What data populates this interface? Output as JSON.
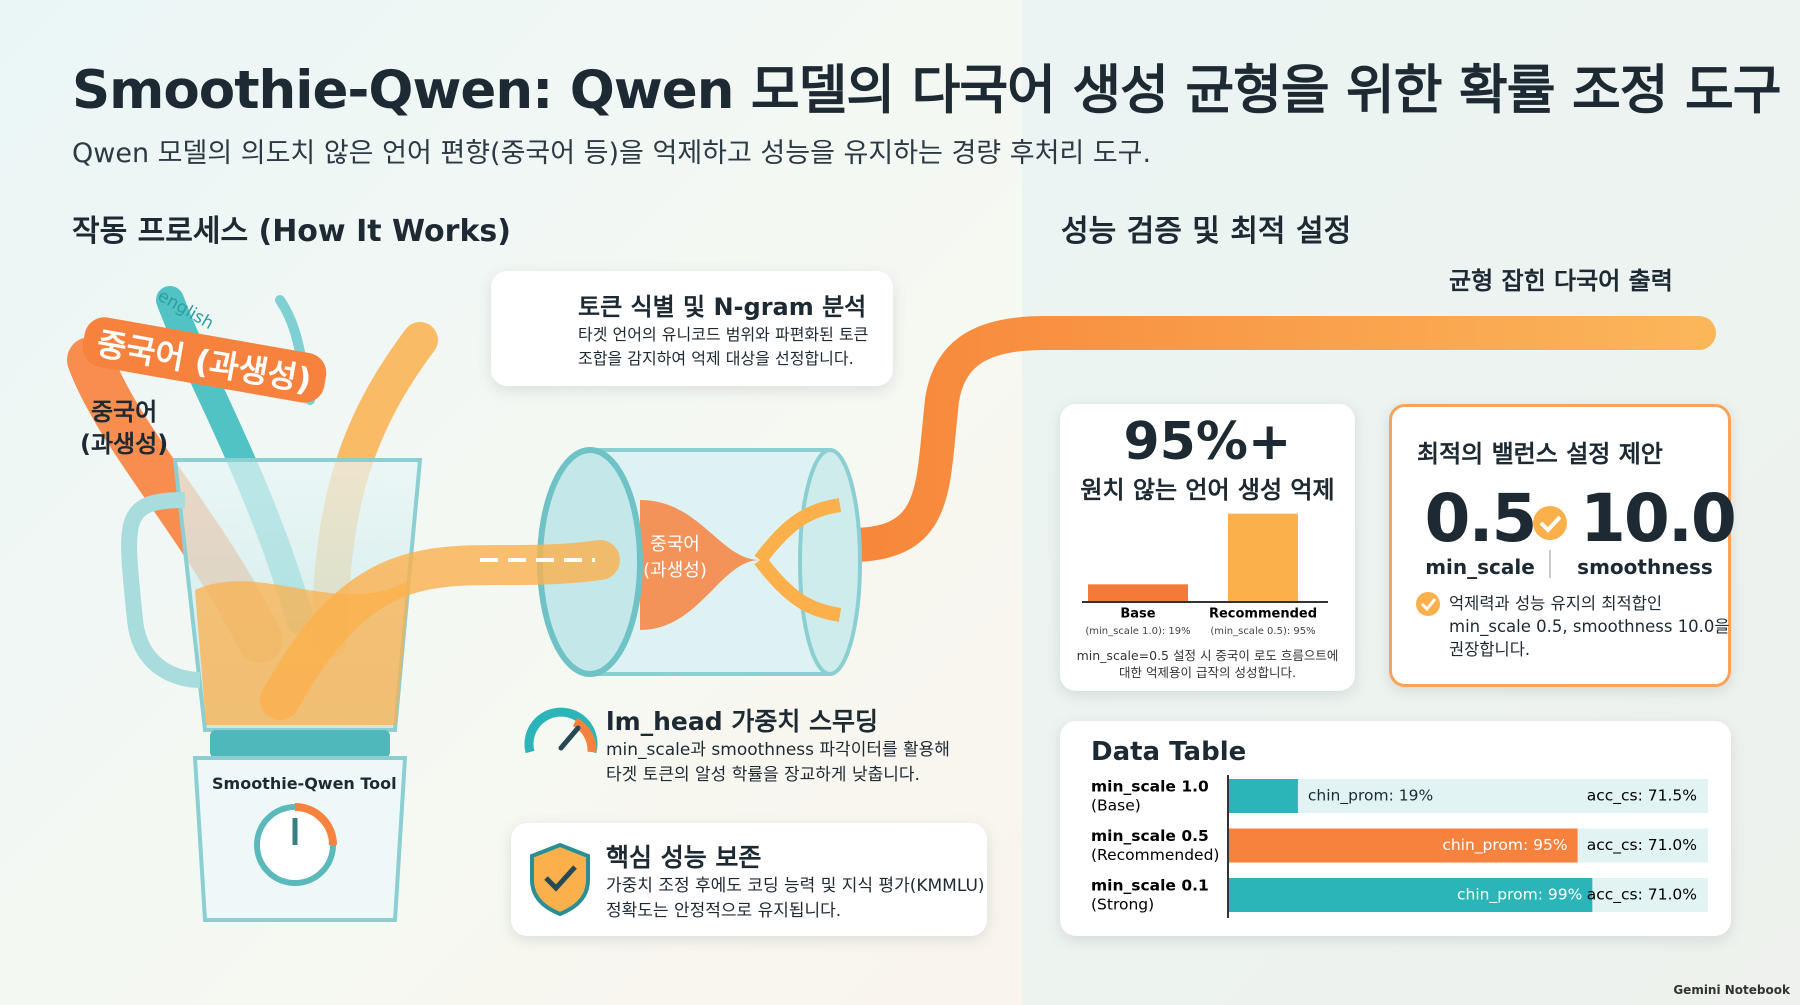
{
  "header": {
    "title": "Smoothie-Qwen: Qwen 모델의 다국어 생성 균형을 위한 확률 조정 도구",
    "subtitle": "Qwen 모델의 의도치 않은 언어 편향(중국어 등)을 억제하고 성능을 유지하는 경량 후처리 도구."
  },
  "left": {
    "heading": "작동 프로세스 (How It Works)",
    "flow_labels": [
      "english",
      "중국어 (과생성)"
    ],
    "side_label": [
      "중국어",
      "(과생성)"
    ],
    "blender_label": "Smoothie-Qwen Tool",
    "cylinder_label": [
      "중국어",
      "(과생성)"
    ],
    "steps": [
      {
        "title": "토큰 식별 및 N-gram 분석",
        "lines": [
          "타겟 언어의 유니코드 범위와 파편화된 토큰",
          "조합을 감지하여 억제 대상을 선정합니다."
        ]
      },
      {
        "title": "lm_head 가중치 스무딩",
        "lines": [
          "min_scale과 smoothness 파각이터를 활용해",
          "타겟 토큰의 알성 학률을 장교하게 낮춥니다."
        ]
      },
      {
        "title": "핵심 성능 보존",
        "lines": [
          "가중치 조정 후에도 코딩 능력 및 지식 평가(KMMLU)",
          "정확도는 안정적으로 유지됩니다."
        ]
      }
    ]
  },
  "right": {
    "heading": "성능 검증 및 최적 설정",
    "output_label": "균형 잡힌 다국어 출력",
    "suppression": {
      "headline": "95%+",
      "caption": "원치 않는 언어 생성 억제",
      "chart": {
        "type": "bar",
        "categories": [
          "Base",
          "Recommended"
        ],
        "sublabels": [
          "(min_scale 1.0): 19%",
          "(min_scale 0.5): 95%"
        ],
        "values": [
          19,
          95
        ],
        "colors": [
          "#f47a38",
          "#fbb04c"
        ],
        "ylim": [
          0,
          100
        ]
      },
      "note": [
        "min_scale=0.5 설정 시 중국이 로도 흐름으트에",
        "대한 억제용이 급작의 성성합니다."
      ]
    },
    "recommendation": {
      "title": "최적의 밸런스 설정 제안",
      "settings": [
        {
          "value": "0.5",
          "label": "min_scale"
        },
        {
          "value": "10.0",
          "label": "smoothness"
        }
      ],
      "lines": [
        "억제력과 성능 유지의 최적합인",
        "min_scale 0.5, smoothness 10.0을",
        "권장합니다."
      ]
    },
    "data_table": {
      "title": "Data Table",
      "xlim": [
        0,
        100
      ],
      "rows": [
        {
          "name": [
            "min_scale 1.0",
            "(Base)"
          ],
          "chin_prom": 19,
          "chin_label": "chin_prom: 19%",
          "acc_label": "acc_cs: 71.5%",
          "color": "#2bb5b8"
        },
        {
          "name": [
            "min_scale 0.5",
            "(Recommended)"
          ],
          "chin_prom": 95,
          "chin_label": "chin_prom: 95%",
          "acc_label": "acc_cs: 71.0%",
          "color": "#f7823e"
        },
        {
          "name": [
            "min_scale 0.1",
            "(Strong)"
          ],
          "chin_prom": 99,
          "chin_label": "chin_prom: 99%",
          "acc_label": "acc_cs: 71.0%",
          "color": "#2bb5b8"
        }
      ]
    }
  },
  "footer": "Gemini Notebook"
}
